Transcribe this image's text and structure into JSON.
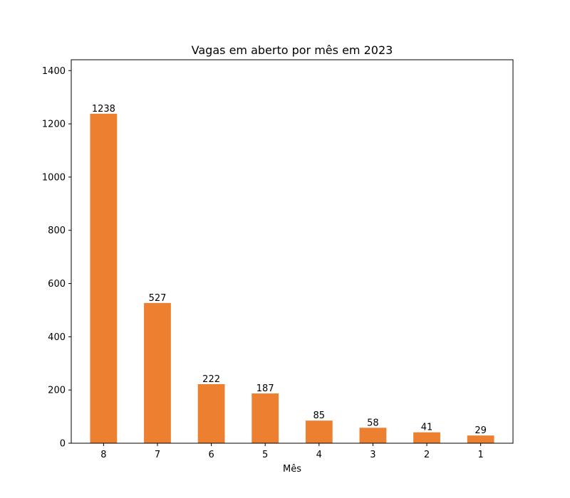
{
  "chart_data": {
    "type": "bar",
    "title": "Vagas em aberto por mês em 2023",
    "xlabel": "Mês",
    "ylabel": "",
    "categories": [
      "8",
      "7",
      "6",
      "5",
      "4",
      "3",
      "2",
      "1"
    ],
    "values": [
      1238,
      527,
      222,
      187,
      85,
      58,
      41,
      29
    ],
    "ylim": [
      0,
      1400
    ],
    "yticks": [
      "0",
      "200",
      "400",
      "600",
      "800",
      "1000",
      "1200",
      "1400"
    ],
    "bar_color": "#ed7f31",
    "grid": false,
    "legend": "none"
  }
}
